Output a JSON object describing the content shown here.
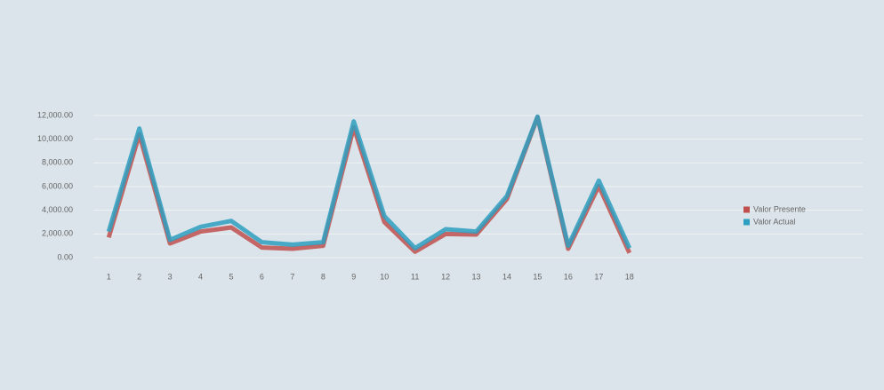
{
  "chart_data": {
    "type": "line",
    "categories": [
      "1",
      "2",
      "3",
      "4",
      "5",
      "6",
      "7",
      "8",
      "9",
      "10",
      "11",
      "12",
      "13",
      "14",
      "15",
      "16",
      "17",
      "18"
    ],
    "series": [
      {
        "name": "Valor Presente",
        "color": "#c0504d",
        "values": [
          1700,
          10400,
          1200,
          2200,
          2550,
          850,
          750,
          1000,
          11000,
          3000,
          500,
          2000,
          1950,
          4950,
          11850,
          750,
          6050,
          400
        ]
      },
      {
        "name": "Valor Actual",
        "color": "#2e9fc0",
        "values": [
          2200,
          10900,
          1500,
          2600,
          3100,
          1300,
          1100,
          1300,
          11500,
          3500,
          800,
          2400,
          2200,
          5200,
          11900,
          1000,
          6500,
          800
        ]
      }
    ],
    "ylim": [
      0,
      12000
    ],
    "yticks": [
      {
        "value": 0,
        "label": "0.00"
      },
      {
        "value": 2000,
        "label": "2,000.00"
      },
      {
        "value": 4000,
        "label": "4,000.00"
      },
      {
        "value": 6000,
        "label": "6,000.00"
      },
      {
        "value": 8000,
        "label": "8,000.00"
      },
      {
        "value": 10000,
        "label": "10,000.00"
      },
      {
        "value": 12000,
        "label": "12,000.00"
      }
    ],
    "grid": true,
    "legend": "right"
  }
}
